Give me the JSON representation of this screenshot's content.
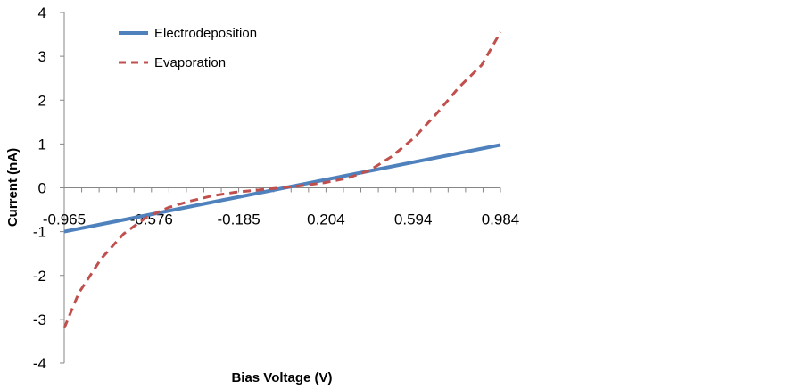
{
  "chart_data": {
    "type": "line",
    "title": "",
    "xlabel": "Bias Voltage (V)",
    "ylabel": "Current (nA)",
    "x_tick_labels": [
      "-0.965",
      "-0.576",
      "-0.185",
      "0.204",
      "0.594",
      "0.984"
    ],
    "xlim": [
      -0.965,
      0.984
    ],
    "ylim": [
      -4,
      4
    ],
    "y_ticks": [
      4,
      3,
      2,
      1,
      0,
      -1,
      -2,
      -3,
      -4
    ],
    "grid": false,
    "legend_position": "top-left",
    "series": [
      {
        "name": "Electrodeposition",
        "style": "solid",
        "color": "#4F81BD",
        "x": [
          -0.965,
          0.984
        ],
        "y": [
          -1.0,
          0.98
        ]
      },
      {
        "name": "Evaporation",
        "style": "dashed",
        "color": "#C0504D",
        "x": [
          -0.965,
          -0.9,
          -0.8,
          -0.7,
          -0.6,
          -0.5,
          -0.4,
          -0.3,
          -0.2,
          -0.1,
          0.0,
          0.1,
          0.2,
          0.3,
          0.4,
          0.5,
          0.6,
          0.7,
          0.8,
          0.9,
          0.984
        ],
        "y": [
          -3.2,
          -2.4,
          -1.62,
          -1.05,
          -0.68,
          -0.45,
          -0.3,
          -0.18,
          -0.1,
          -0.05,
          0.0,
          0.05,
          0.12,
          0.22,
          0.4,
          0.72,
          1.15,
          1.7,
          2.3,
          2.8,
          3.55
        ]
      }
    ]
  }
}
